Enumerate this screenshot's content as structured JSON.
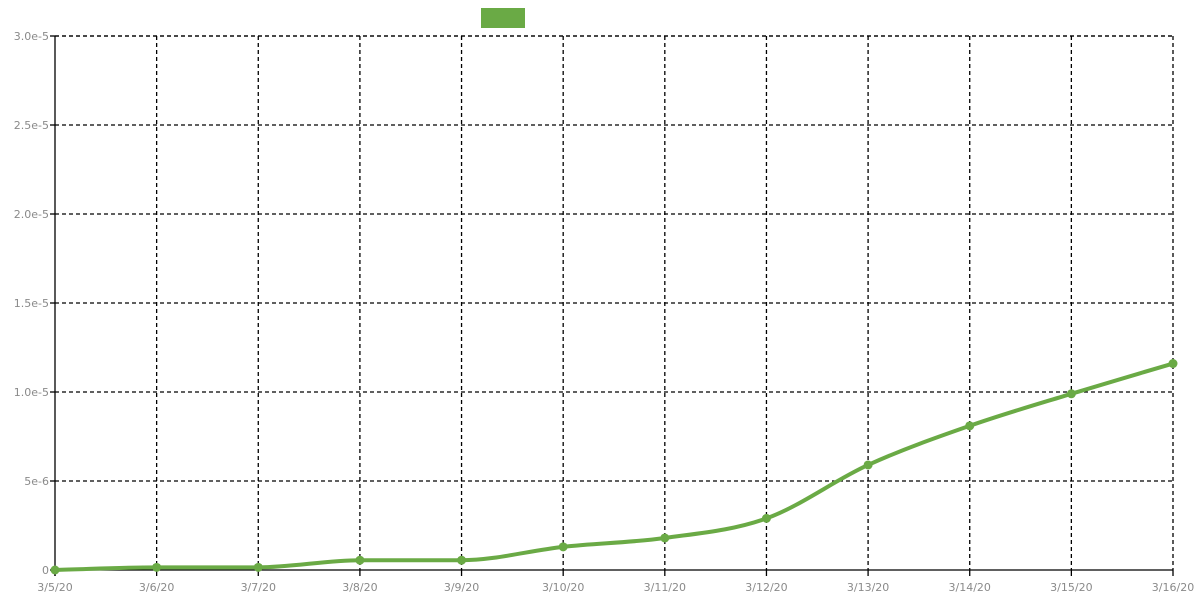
{
  "chart_data": {
    "type": "line",
    "title": "",
    "xlabel": "",
    "ylabel": "",
    "categories": [
      "3/5/20",
      "3/6/20",
      "3/7/20",
      "3/8/20",
      "3/9/20",
      "3/10/20",
      "3/11/20",
      "3/12/20",
      "3/13/20",
      "3/14/20",
      "3/15/20",
      "3/16/20"
    ],
    "ylim": [
      0,
      3e-05
    ],
    "yticks": [
      {
        "value": 0,
        "label": "0"
      },
      {
        "value": 5e-06,
        "label": "5e-6"
      },
      {
        "value": 1e-05,
        "label": "1.0e-5"
      },
      {
        "value": 1.5e-05,
        "label": "1.5e-5"
      },
      {
        "value": 2e-05,
        "label": "2.0e-5"
      },
      {
        "value": 2.5e-05,
        "label": "2.5e-5"
      },
      {
        "value": 3e-05,
        "label": "3.0e-5"
      }
    ],
    "grid": true,
    "legend_position": "top-center",
    "series": [
      {
        "name": "",
        "color": "#6aaa45",
        "values": [
          0.0,
          1.5e-07,
          1.5e-07,
          5.5e-07,
          5.5e-07,
          1.3e-06,
          1.8e-06,
          2.9e-06,
          5.9e-06,
          8.1e-06,
          9.9e-06,
          1.16e-05
        ]
      }
    ]
  }
}
